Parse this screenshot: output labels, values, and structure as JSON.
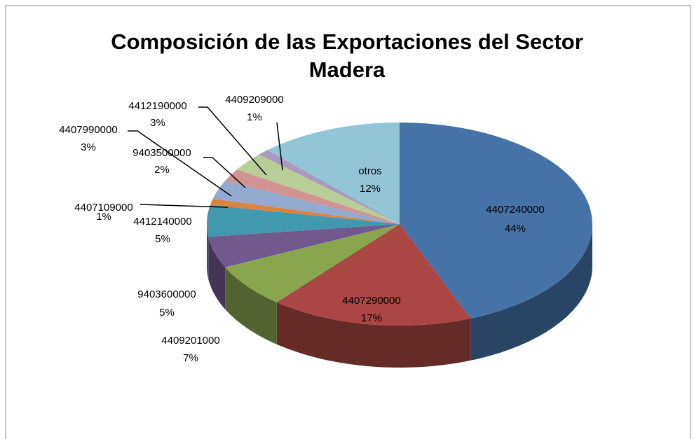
{
  "chart_data": {
    "type": "pie",
    "title": "Composición de las Exportaciones del Sector Madera",
    "categories": [
      "4407240000",
      "4407290000",
      "4409201000",
      "9403600000",
      "4412140000",
      "4407109000",
      "4407990000",
      "9403500000",
      "4412190000",
      "4409209000",
      "otros"
    ],
    "values": [
      44,
      17,
      7,
      5,
      5,
      1,
      3,
      2,
      3,
      1,
      12
    ],
    "value_labels": [
      "44%",
      "17%",
      "7%",
      "5%",
      "5%",
      "1%",
      "3%",
      "2%",
      "3%",
      "1%",
      "12%"
    ],
    "colors": [
      "#4572A7",
      "#AA4643",
      "#89A54E",
      "#71588F",
      "#4198AF",
      "#DB843D",
      "#93A9CF",
      "#D19392",
      "#B9CD96",
      "#A99BBD",
      "#92C6D6"
    ]
  }
}
